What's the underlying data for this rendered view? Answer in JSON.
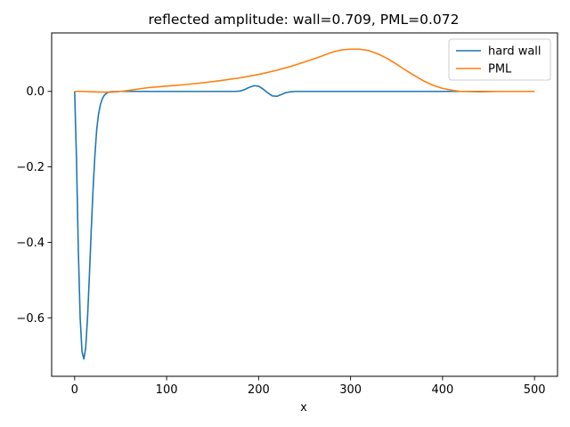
{
  "chart_data": {
    "type": "line",
    "title": "reflected amplitude: wall=0.709, PML=0.072",
    "xlabel": "x",
    "ylabel": "",
    "xlim": [
      -25,
      525
    ],
    "ylim": [
      -0.755,
      0.155
    ],
    "xticks": [
      0,
      100,
      200,
      300,
      400,
      500
    ],
    "xtick_labels": [
      "0",
      "100",
      "200",
      "300",
      "400",
      "500"
    ],
    "yticks": [
      -0.6,
      -0.4,
      -0.2,
      0.0
    ],
    "ytick_labels": [
      "−0.6",
      "−0.4",
      "−0.2",
      "0.0"
    ],
    "grid": false,
    "legend": "top-right",
    "series": [
      {
        "name": "hard wall",
        "color": "#1f77b4",
        "x": [
          0,
          2,
          4,
          6,
          8,
          10,
          12,
          14,
          16,
          18,
          20,
          22,
          24,
          26,
          28,
          30,
          32,
          34,
          36,
          38,
          40,
          45,
          50,
          60,
          80,
          120,
          160,
          175,
          180,
          185,
          190,
          195,
          200,
          205,
          210,
          215,
          220,
          225,
          230,
          235,
          240,
          260,
          300,
          350,
          400,
          450,
          500
        ],
        "y": [
          0.0,
          -0.18,
          -0.42,
          -0.6,
          -0.69,
          -0.709,
          -0.68,
          -0.6,
          -0.49,
          -0.37,
          -0.26,
          -0.17,
          -0.1,
          -0.06,
          -0.035,
          -0.02,
          -0.011,
          -0.006,
          -0.003,
          -0.0015,
          -0.0008,
          -0.0003,
          0.0,
          0.0,
          0.0,
          0.0,
          0.0,
          0.0,
          0.001,
          0.005,
          0.011,
          0.015,
          0.014,
          0.006,
          -0.004,
          -0.012,
          -0.013,
          -0.008,
          -0.003,
          -0.001,
          0.0,
          0.0,
          0.0,
          0.0,
          0.0,
          0.0,
          0.0
        ]
      },
      {
        "name": "PML",
        "color": "#ff7f0e",
        "x": [
          0,
          10,
          20,
          30,
          40,
          50,
          60,
          80,
          100,
          120,
          140,
          160,
          180,
          200,
          220,
          240,
          260,
          270,
          280,
          290,
          300,
          310,
          320,
          330,
          340,
          350,
          360,
          370,
          380,
          390,
          400,
          410,
          420,
          440,
          460,
          480,
          500
        ],
        "y": [
          0.0,
          0.0,
          -0.001,
          -0.002,
          -0.002,
          0.0,
          0.003,
          0.01,
          0.014,
          0.018,
          0.023,
          0.029,
          0.036,
          0.045,
          0.056,
          0.07,
          0.086,
          0.095,
          0.104,
          0.11,
          0.112,
          0.112,
          0.108,
          0.099,
          0.087,
          0.072,
          0.056,
          0.041,
          0.027,
          0.016,
          0.008,
          0.003,
          0.0,
          -0.001,
          0.0,
          0.0,
          0.0
        ]
      }
    ]
  }
}
